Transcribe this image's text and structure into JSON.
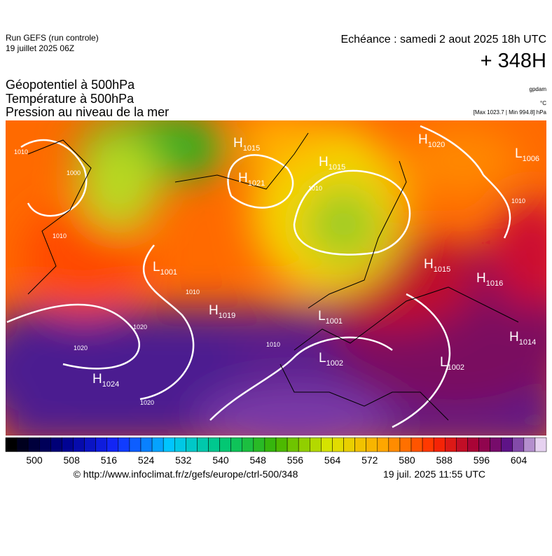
{
  "header": {
    "run": "Run GEFS (run controle)",
    "run_date": "19 juillet 2025 06Z",
    "forecast": "Echéance : samedi 2 aout 2025 18h UTC",
    "lead": "+ 348H"
  },
  "titles": [
    "Géopotentiel à 500hPa",
    "Température à 500hPa",
    "Pression au niveau de la mer"
  ],
  "units": {
    "geopotential": "gpdam",
    "temperature": "°C",
    "pressure": "[Max 1023.7 | Min 994.8] hPa"
  },
  "centers": [
    {
      "letter": "H",
      "value": "1015"
    },
    {
      "letter": "H",
      "value": "1021"
    },
    {
      "letter": "H",
      "value": "1015"
    },
    {
      "letter": "H",
      "value": "1020"
    },
    {
      "letter": "L",
      "value": "1006"
    },
    {
      "letter": "L",
      "value": "1001"
    },
    {
      "letter": "H",
      "value": "1019"
    },
    {
      "letter": "L",
      "value": "1001"
    },
    {
      "letter": "L",
      "value": "1002"
    },
    {
      "letter": "H",
      "value": "1015"
    },
    {
      "letter": "H",
      "value": "1016"
    },
    {
      "letter": "H",
      "value": "1014"
    },
    {
      "letter": "L",
      "value": "1002"
    },
    {
      "letter": "H",
      "value": "1024"
    }
  ],
  "isobar_labels": [
    "1010",
    "1000",
    "1010",
    "1020",
    "1020",
    "1020",
    "1010",
    "1010",
    "1010",
    "1010"
  ],
  "colorbar": {
    "ticks": [
      500,
      508,
      516,
      524,
      532,
      540,
      548,
      556,
      564,
      572,
      580,
      588,
      596,
      604
    ]
  },
  "footer": {
    "source": "© http://www.infoclimat.fr/z/gefs/europe/ctrl-500/348",
    "issued": "19 juil. 2025 11:55 UTC"
  }
}
